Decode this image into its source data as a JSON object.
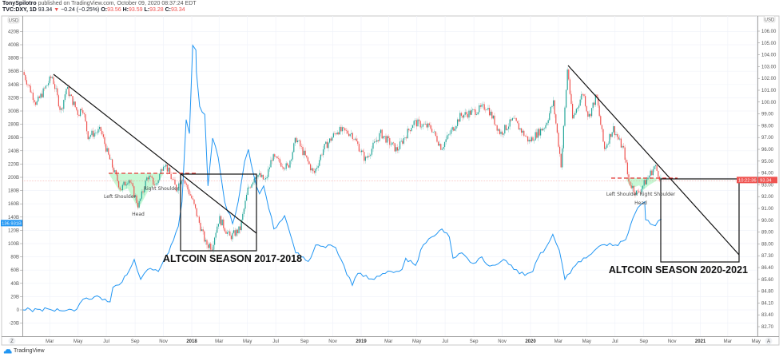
{
  "header": {
    "publisher": "TonySpilotro",
    "published_text": "published on TradingView.com, October 09, 2020 08:37:24 EDT",
    "symbol": "TVC:DXY, 1D",
    "last": "93.34",
    "change": "−0.24 (−0.25%)",
    "o_label": "O:",
    "o": "93.56",
    "h_label": "H:",
    "h": "93.59",
    "l_label": "L:",
    "l": "93.28",
    "c_label": "C:",
    "c": "93.34"
  },
  "left_axis": {
    "currency": "USD",
    "current_label": "136.931B"
  },
  "right_axis": {
    "currency": "USD",
    "current_label": "93.34",
    "countdown": "10:22:36",
    "auto_button": "A"
  },
  "bottom_left_button": "Z",
  "brand": "TradingView",
  "annotations": {
    "left_shoulder_1": "Left Shoulder",
    "right_shoulder_1": "Right Shoulder",
    "head_1": "Head",
    "season_1": "ALTCOIN SEASON 2017-2018",
    "shoulders_2": "Left Shoulder Right Shoulder",
    "head_2": "Head",
    "season_2": "ALTCOIN SEASON 2020-2021"
  },
  "colors": {
    "up": "#26a69a",
    "down": "#ef5350",
    "altcap_line": "#2196f3",
    "neckline": "#e53935",
    "pattern_fill": "#b9f6ca",
    "price_line": "#ef5350"
  },
  "chart_data": {
    "type": "candlestick+line",
    "grid": true,
    "x_ticks": [
      {
        "label": "Mar",
        "date": "2017-03-01"
      },
      {
        "label": "May",
        "date": "2017-05-01"
      },
      {
        "label": "Jul",
        "date": "2017-07-01"
      },
      {
        "label": "Sep",
        "date": "2017-09-01"
      },
      {
        "label": "Nov",
        "date": "2017-11-01"
      },
      {
        "label": "2018",
        "date": "2018-01-01",
        "bold": true
      },
      {
        "label": "Mar",
        "date": "2018-03-01"
      },
      {
        "label": "May",
        "date": "2018-05-01"
      },
      {
        "label": "Jul",
        "date": "2018-07-01"
      },
      {
        "label": "Sep",
        "date": "2018-09-01"
      },
      {
        "label": "Nov",
        "date": "2018-11-01"
      },
      {
        "label": "2019",
        "date": "2019-01-01",
        "bold": true
      },
      {
        "label": "Mar",
        "date": "2019-03-01"
      },
      {
        "label": "May",
        "date": "2019-05-01"
      },
      {
        "label": "Jul",
        "date": "2019-07-01"
      },
      {
        "label": "Sep",
        "date": "2019-09-01"
      },
      {
        "label": "Nov",
        "date": "2019-11-01"
      },
      {
        "label": "2020",
        "date": "2020-01-01",
        "bold": true
      },
      {
        "label": "Mar",
        "date": "2020-03-01"
      },
      {
        "label": "May",
        "date": "2020-05-01"
      },
      {
        "label": "Jul",
        "date": "2020-07-01"
      },
      {
        "label": "Sep",
        "date": "2020-09-01"
      },
      {
        "label": "Nov",
        "date": "2020-11-01"
      },
      {
        "label": "2021",
        "date": "2021-01-01",
        "bold": true
      },
      {
        "label": "Mar",
        "date": "2021-03-01"
      },
      {
        "label": "May",
        "date": "2021-05-01"
      }
    ],
    "left_ticks": [
      "420B",
      "400B",
      "380B",
      "360B",
      "340B",
      "320B",
      "300B",
      "280B",
      "260B",
      "240B",
      "220B",
      "200B",
      "180B",
      "160B",
      "140B",
      "120B",
      "100B",
      "80B",
      "60B",
      "40B",
      "20B",
      "0",
      "-20B"
    ],
    "left_tick_values": [
      420,
      400,
      380,
      360,
      340,
      320,
      300,
      280,
      260,
      240,
      220,
      200,
      180,
      160,
      140,
      120,
      100,
      80,
      60,
      40,
      20,
      0,
      -20
    ],
    "right_ticks": [
      "106.00",
      "105.00",
      "104.00",
      "103.00",
      "102.00",
      "101.00",
      "100.00",
      "99.00",
      "98.00",
      "97.00",
      "96.00",
      "95.00",
      "94.00",
      "93.00",
      "92.00",
      "91.00",
      "90.00",
      "89.00",
      "88.00",
      "87.30",
      "86.40",
      "85.60",
      "84.80",
      "84.10",
      "83.40",
      "82.70"
    ],
    "right_tick_values": [
      106,
      105,
      104,
      103,
      102,
      101,
      100,
      99,
      98,
      97,
      96,
      95,
      94,
      93,
      92,
      91,
      90,
      89,
      88,
      87.3,
      86.4,
      85.6,
      84.8,
      84.1,
      83.4,
      82.7
    ],
    "series": [
      {
        "name": "TVC:DXY",
        "axis": "right",
        "style": "candles",
        "points": [
          [
            "2017-01-02",
            102.55
          ],
          [
            "2017-01-31",
            99.85
          ],
          [
            "2017-03-06",
            102.2
          ],
          [
            "2017-03-25",
            99.2
          ],
          [
            "2017-04-06",
            101.2
          ],
          [
            "2017-05-02",
            98.97
          ],
          [
            "2017-05-10",
            99.7
          ],
          [
            "2017-05-22",
            97.15
          ],
          [
            "2017-06-19",
            97.6
          ],
          [
            "2017-07-04",
            95.6
          ],
          [
            "2017-07-21",
            93.77
          ],
          [
            "2017-08-01",
            92.6
          ],
          [
            "2017-08-18",
            93.57
          ],
          [
            "2017-09-08",
            91.2
          ],
          [
            "2017-09-28",
            93.77
          ],
          [
            "2017-10-16",
            92.9
          ],
          [
            "2017-11-02",
            95.0
          ],
          [
            "2017-11-29",
            92.6
          ],
          [
            "2017-12-11",
            93.77
          ],
          [
            "2018-01-02",
            91.74
          ],
          [
            "2018-01-14",
            90.19
          ],
          [
            "2018-01-31",
            88.03
          ],
          [
            "2018-02-14",
            87.92
          ],
          [
            "2018-03-01",
            90.19
          ],
          [
            "2018-03-24",
            88.57
          ],
          [
            "2018-04-15",
            89.24
          ],
          [
            "2018-05-02",
            92.6
          ],
          [
            "2018-05-20",
            93.97
          ],
          [
            "2018-06-09",
            93.3
          ],
          [
            "2018-06-23",
            95.32
          ],
          [
            "2018-07-27",
            94.45
          ],
          [
            "2018-08-14",
            96.95
          ],
          [
            "2018-09-21",
            93.9
          ],
          [
            "2018-10-11",
            96.0
          ],
          [
            "2018-11-11",
            97.62
          ],
          [
            "2018-12-12",
            97.35
          ],
          [
            "2019-01-10",
            95.12
          ],
          [
            "2019-02-12",
            97.35
          ],
          [
            "2019-03-19",
            95.93
          ],
          [
            "2019-04-24",
            98.3
          ],
          [
            "2019-06-01",
            97.82
          ],
          [
            "2019-06-23",
            96.14
          ],
          [
            "2019-08-03",
            98.84
          ],
          [
            "2019-08-31",
            99.18
          ],
          [
            "2019-09-29",
            99.65
          ],
          [
            "2019-10-28",
            97.35
          ],
          [
            "2019-11-25",
            98.5
          ],
          [
            "2019-12-29",
            96.68
          ],
          [
            "2020-02-02",
            98.03
          ],
          [
            "2020-02-19",
            99.99
          ],
          [
            "2020-03-07",
            94.65
          ],
          [
            "2020-03-21",
            103.03
          ],
          [
            "2020-03-31",
            98.5
          ],
          [
            "2020-04-23",
            100.86
          ],
          [
            "2020-05-05",
            98.7
          ],
          [
            "2020-05-22",
            100.53
          ],
          [
            "2020-06-08",
            96.0
          ],
          [
            "2020-06-27",
            97.82
          ],
          [
            "2020-07-21",
            95.8
          ],
          [
            "2020-07-30",
            93.3
          ],
          [
            "2020-08-18",
            92.22
          ],
          [
            "2020-09-04",
            93.23
          ],
          [
            "2020-09-25",
            94.58
          ],
          [
            "2020-10-09",
            93.34
          ]
        ]
      },
      {
        "axis": "left",
        "style": "line",
        "unit": "B",
        "points": [
          [
            "2017-01-02",
            0
          ],
          [
            "2017-04-28",
            1
          ],
          [
            "2017-05-05",
            10
          ],
          [
            "2017-05-19",
            18
          ],
          [
            "2017-06-17",
            19
          ],
          [
            "2017-07-09",
            12
          ],
          [
            "2017-07-15",
            34
          ],
          [
            "2017-08-04",
            42
          ],
          [
            "2017-08-30",
            76
          ],
          [
            "2017-09-13",
            46
          ],
          [
            "2017-09-28",
            61
          ],
          [
            "2017-10-21",
            58
          ],
          [
            "2017-11-12",
            86
          ],
          [
            "2017-12-03",
            126
          ],
          [
            "2017-12-11",
            163
          ],
          [
            "2017-12-20",
            287
          ],
          [
            "2017-12-27",
            266
          ],
          [
            "2018-01-03",
            399
          ],
          [
            "2018-01-10",
            392
          ],
          [
            "2018-01-11",
            359
          ],
          [
            "2018-01-18",
            307
          ],
          [
            "2018-01-29",
            295
          ],
          [
            "2018-02-05",
            187
          ],
          [
            "2018-02-15",
            259
          ],
          [
            "2018-02-27",
            230
          ],
          [
            "2018-03-13",
            163
          ],
          [
            "2018-03-30",
            130
          ],
          [
            "2018-04-11",
            163
          ],
          [
            "2018-04-25",
            224
          ],
          [
            "2018-05-03",
            242
          ],
          [
            "2018-05-15",
            202
          ],
          [
            "2018-05-27",
            175
          ],
          [
            "2018-06-05",
            187
          ],
          [
            "2018-06-27",
            122
          ],
          [
            "2018-07-20",
            142
          ],
          [
            "2018-08-13",
            86
          ],
          [
            "2018-09-09",
            73
          ],
          [
            "2018-09-25",
            98
          ],
          [
            "2018-11-07",
            94
          ],
          [
            "2018-12-13",
            37
          ],
          [
            "2018-12-25",
            55
          ],
          [
            "2019-01-29",
            46
          ],
          [
            "2019-02-22",
            55
          ],
          [
            "2019-03-30",
            61
          ],
          [
            "2019-04-07",
            78
          ],
          [
            "2019-04-28",
            67
          ],
          [
            "2019-05-15",
            98
          ],
          [
            "2019-06-02",
            110
          ],
          [
            "2019-06-24",
            122
          ],
          [
            "2019-07-10",
            110
          ],
          [
            "2019-07-18",
            78
          ],
          [
            "2019-08-06",
            86
          ],
          [
            "2019-08-30",
            70
          ],
          [
            "2019-09-18",
            80
          ],
          [
            "2019-10-05",
            66
          ],
          [
            "2019-11-04",
            76
          ],
          [
            "2019-11-26",
            61
          ],
          [
            "2019-12-20",
            52
          ],
          [
            "2020-01-06",
            58
          ],
          [
            "2020-01-17",
            78
          ],
          [
            "2020-02-03",
            94
          ],
          [
            "2020-02-18",
            114
          ],
          [
            "2020-03-03",
            90
          ],
          [
            "2020-03-15",
            46
          ],
          [
            "2020-04-07",
            67
          ],
          [
            "2020-05-06",
            82
          ],
          [
            "2020-06-02",
            98
          ],
          [
            "2020-07-02",
            98
          ],
          [
            "2020-07-24",
            106
          ],
          [
            "2020-08-09",
            139
          ],
          [
            "2020-08-19",
            154
          ],
          [
            "2020-09-03",
            163
          ],
          [
            "2020-09-05",
            136
          ],
          [
            "2020-09-26",
            127
          ],
          [
            "2020-10-09",
            136.93
          ]
        ]
      }
    ]
  }
}
